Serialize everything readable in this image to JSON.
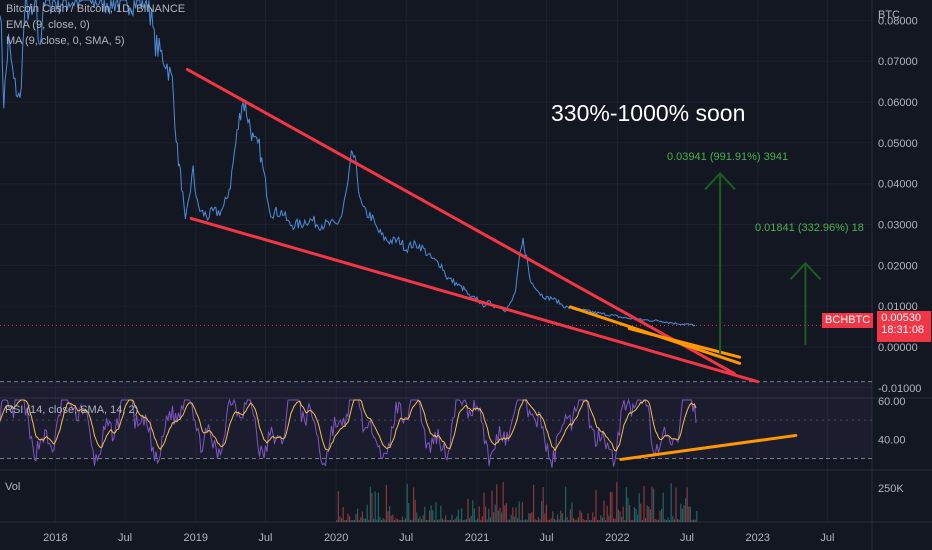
{
  "header": {
    "symbol_line": "Bitcoin Cash / Bitcoin, 1D, BINANCE",
    "ema_line": "EMA (9, close, 0)",
    "ma_line": "MA (9, close, 0, SMA, 5)",
    "rsi_line": "RSI (14, close, SMA, 14, 2)",
    "vol_label": "Vol"
  },
  "annotations": {
    "headline": "330%-1000% soon",
    "target_high": "0.03941 (991.91%) 3941",
    "target_low": "0.01841 (332.96%) 18"
  },
  "price_tag": {
    "symbol": "BCHBTC",
    "price": "0.00530",
    "countdown": "18:31:08"
  },
  "colors": {
    "background": "#131722",
    "price_line": "#4e8bd8",
    "trendline": "#f23645",
    "support_orange": "#ff9800",
    "arrow_green": "#1b5e20",
    "target_text": "#4caf50",
    "rsi_line": "#7e57c2",
    "rsi_ma": "#f5c04a",
    "price_tag": "#f23645"
  },
  "chart_data": [
    {
      "type": "line",
      "pane": "price",
      "ylabel": "BTC",
      "ylim": [
        -0.0125,
        0.085
      ],
      "y_ticks": [
        "0.08000",
        "0.07000",
        "0.06000",
        "0.05000",
        "0.04000",
        "0.03000",
        "0.02000",
        "0.01000",
        "0.00000",
        "-0.01000"
      ],
      "y_tick_values": [
        0.08,
        0.07,
        0.06,
        0.05,
        0.04,
        0.03,
        0.02,
        0.01,
        0.0,
        -0.01
      ],
      "x_ticks": [
        "2018",
        "Jul",
        "2019",
        "Jul",
        "2020",
        "Jul",
        "2021",
        "Jul",
        "2022",
        "Jul",
        "2023",
        "Jul"
      ],
      "x_tick_values": [
        "2018-01-01",
        "2018-07-01",
        "2019-01-01",
        "2019-07-01",
        "2020-01-01",
        "2020-07-01",
        "2021-01-01",
        "2021-07-01",
        "2022-01-01",
        "2022-07-01",
        "2023-01-01",
        "2023-07-01"
      ],
      "xlim": [
        "2017-08-10",
        "2023-10-25"
      ],
      "series": [
        {
          "x": [
            "2017-08-10",
            "2017-08-20",
            "2017-09-01",
            "2017-09-15",
            "2017-10-01",
            "2017-10-15",
            "2017-11-01",
            "2017-11-12",
            "2017-11-20",
            "2017-12-01",
            "2017-12-10",
            "2017-12-20",
            "2018-01-01",
            "2018-01-15",
            "2018-02-01",
            "2018-02-15",
            "2018-03-01",
            "2018-03-15",
            "2018-04-01",
            "2018-04-15",
            "2018-05-01",
            "2018-05-15",
            "2018-06-01",
            "2018-06-15",
            "2018-07-01",
            "2018-07-15",
            "2018-08-01",
            "2018-08-15",
            "2018-09-01",
            "2018-09-15",
            "2018-10-01",
            "2018-10-15",
            "2018-11-01",
            "2018-11-14",
            "2018-11-25",
            "2018-12-05",
            "2018-12-15",
            "2018-12-25",
            "2019-01-05",
            "2019-01-15",
            "2019-02-01",
            "2019-02-15",
            "2019-03-01",
            "2019-03-15",
            "2019-04-01",
            "2019-04-15",
            "2019-05-01",
            "2019-05-10",
            "2019-05-20",
            "2019-06-01",
            "2019-06-15",
            "2019-07-01",
            "2019-07-15",
            "2019-08-01",
            "2019-08-15",
            "2019-09-01",
            "2019-09-15",
            "2019-10-01",
            "2019-10-15",
            "2019-11-01",
            "2019-11-15",
            "2019-12-01",
            "2019-12-15",
            "2020-01-01",
            "2020-01-15",
            "2020-02-01",
            "2020-02-12",
            "2020-02-25",
            "2020-03-05",
            "2020-03-15",
            "2020-04-01",
            "2020-04-15",
            "2020-05-01",
            "2020-05-15",
            "2020-06-01",
            "2020-06-15",
            "2020-07-01",
            "2020-07-15",
            "2020-08-01",
            "2020-08-15",
            "2020-09-01",
            "2020-09-15",
            "2020-10-01",
            "2020-10-15",
            "2020-11-01",
            "2020-11-15",
            "2020-12-01",
            "2020-12-15",
            "2021-01-01",
            "2021-01-15",
            "2021-02-01",
            "2021-02-15",
            "2021-03-01",
            "2021-03-15",
            "2021-04-01",
            "2021-04-12",
            "2021-04-22",
            "2021-05-01",
            "2021-05-10",
            "2021-05-20",
            "2021-06-01",
            "2021-06-15",
            "2021-07-01",
            "2021-07-15",
            "2021-08-01",
            "2021-08-15",
            "2021-09-01",
            "2021-09-15",
            "2021-10-01",
            "2021-10-15",
            "2021-11-01",
            "2021-11-15",
            "2021-12-01",
            "2021-12-15",
            "2022-01-01",
            "2022-01-15",
            "2022-02-01",
            "2022-02-15",
            "2022-03-01",
            "2022-03-15",
            "2022-04-01",
            "2022-04-15",
            "2022-05-01",
            "2022-05-15",
            "2022-06-01",
            "2022-06-15",
            "2022-07-01",
            "2022-07-15",
            "2022-07-25"
          ],
          "y": [
            0.085,
            0.06,
            0.075,
            0.065,
            0.06,
            0.085,
            0.08,
            0.085,
            0.072,
            0.085,
            0.085,
            0.085,
            0.085,
            0.085,
            0.085,
            0.085,
            0.085,
            0.085,
            0.085,
            0.085,
            0.085,
            0.085,
            0.085,
            0.085,
            0.085,
            0.085,
            0.085,
            0.085,
            0.085,
            0.075,
            0.072,
            0.07,
            0.065,
            0.048,
            0.04,
            0.03,
            0.037,
            0.043,
            0.035,
            0.033,
            0.032,
            0.033,
            0.033,
            0.034,
            0.04,
            0.05,
            0.06,
            0.059,
            0.055,
            0.05,
            0.049,
            0.04,
            0.033,
            0.033,
            0.033,
            0.03,
            0.03,
            0.03,
            0.031,
            0.031,
            0.03,
            0.03,
            0.03,
            0.03,
            0.032,
            0.04,
            0.048,
            0.042,
            0.035,
            0.033,
            0.032,
            0.029,
            0.027,
            0.026,
            0.026,
            0.026,
            0.024,
            0.025,
            0.025,
            0.024,
            0.022,
            0.021,
            0.02,
            0.017,
            0.016,
            0.015,
            0.014,
            0.012,
            0.012,
            0.01,
            0.011,
            0.01,
            0.01,
            0.009,
            0.011,
            0.014,
            0.022,
            0.026,
            0.022,
            0.016,
            0.015,
            0.013,
            0.012,
            0.012,
            0.011,
            0.01,
            0.0095,
            0.0092,
            0.009,
            0.0088,
            0.0085,
            0.0082,
            0.008,
            0.0078,
            0.0075,
            0.0072,
            0.007,
            0.0068,
            0.0067,
            0.0066,
            0.0065,
            0.0064,
            0.0063,
            0.006,
            0.0058,
            0.0057,
            0.0055,
            0.0054,
            0.0053
          ]
        }
      ],
      "drawn_lines": [
        {
          "name": "upper-trendline",
          "from": {
            "x": "2018-12-10",
            "y": 0.068
          },
          "to": {
            "x": "2022-11-01",
            "y": -0.0065
          }
        },
        {
          "name": "lower-trendline",
          "from": {
            "x": "2018-12-20",
            "y": 0.0315
          },
          "to": {
            "x": "2023-01-01",
            "y": -0.0085
          }
        },
        {
          "name": "orange-support-price",
          "from": {
            "x": "2021-09-01",
            "y": 0.0098
          },
          "to": {
            "x": "2022-11-15",
            "y": -0.004
          }
        },
        {
          "name": "orange-support-price-2",
          "from": {
            "x": "2022-02-01",
            "y": 0.0045
          },
          "to": {
            "x": "2022-11-15",
            "y": -0.0025
          }
        }
      ],
      "targets": [
        {
          "name": "high-target",
          "x": "2022-09-25",
          "from_y": -0.002,
          "to_y": 0.0425
        },
        {
          "name": "low-target",
          "x": "2023-05-05",
          "from_y": 0.0005,
          "to_y": 0.0205
        }
      ]
    },
    {
      "type": "line",
      "pane": "rsi",
      "y_ticks": [
        "60.00",
        "40.00"
      ],
      "y_tick_values": [
        60,
        40
      ],
      "ylim": [
        24,
        61.5
      ],
      "band": [
        30,
        70
      ],
      "support_line": {
        "from": {
          "x": "2022-01-10",
          "y": 29.5
        },
        "to": {
          "x": "2023-04-10",
          "y": 42
        }
      }
    },
    {
      "type": "bar",
      "pane": "volume",
      "y_ticks": [
        "250K"
      ],
      "y_tick_values": [
        250000
      ]
    }
  ]
}
